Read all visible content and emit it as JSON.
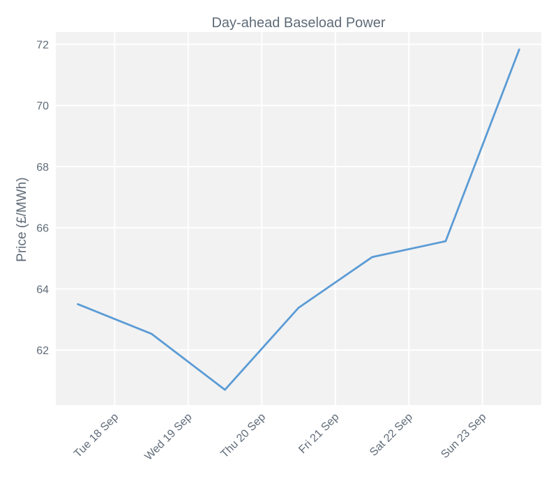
{
  "chart_data": {
    "type": "line",
    "title": "Day-ahead Baseload Power",
    "xlabel": "",
    "ylabel": "Price (£/MWh)",
    "x": [
      "2018-09-17 12:00",
      "2018-09-18 12:00",
      "2018-09-19 12:00",
      "2018-09-20 12:00",
      "2018-09-21 12:00",
      "2018-09-22 12:00",
      "2018-09-23 12:00"
    ],
    "x_tick_labels": [
      "Tue 18 Sep",
      "Wed 19 Sep",
      "Thu 20 Sep",
      "Fri 21 Sep",
      "Sat 22 Sep",
      "Sun 23 Sep"
    ],
    "y_ticks": [
      62,
      64,
      66,
      68,
      70,
      72
    ],
    "series": [
      {
        "values": [
          63.5,
          62.53,
          60.7,
          63.38,
          65.04,
          65.56,
          71.83
        ]
      }
    ],
    "ylim": [
      60.2,
      72.4
    ],
    "grid": true,
    "colors": {
      "line": "#5b9bd5",
      "plot_background": "#f2f2f2",
      "grid": "#ffffff",
      "text": "#5f6b78"
    }
  }
}
